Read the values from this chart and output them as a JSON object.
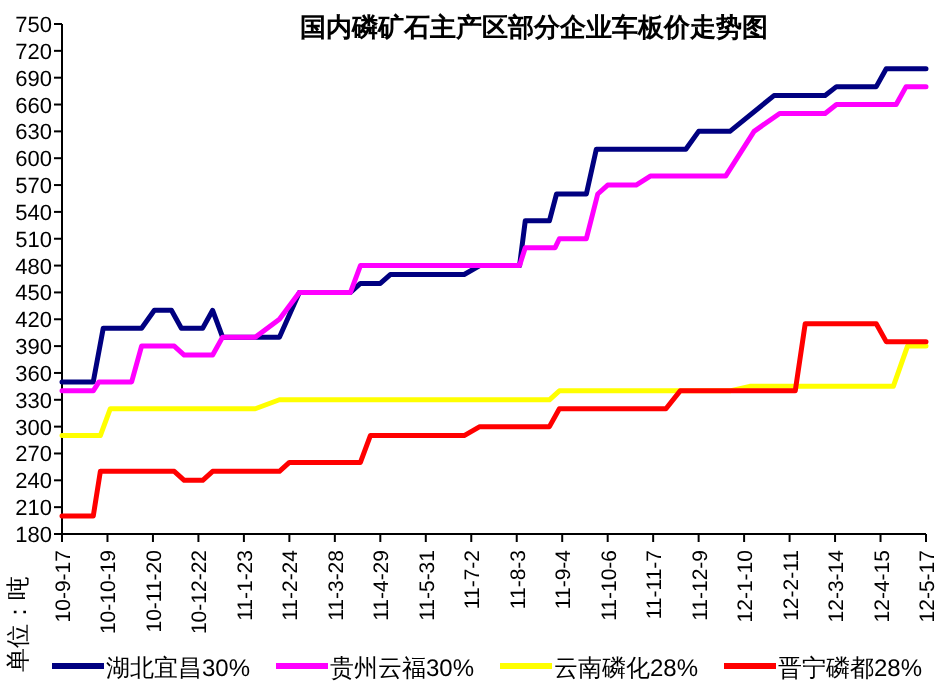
{
  "chart_data": {
    "type": "line",
    "title": "国内磷矿石主产区部分企业车板价走势图",
    "annotations": [
      "单位：吨"
    ],
    "xlim": [
      "2010-09-17",
      "2012-05-17"
    ],
    "xticks": [
      {
        "value": "2010-09-17",
        "label": "10-9-17"
      },
      {
        "value": "2010-10-19",
        "label": "10-10-19"
      },
      {
        "value": "2010-11-20",
        "label": "10-11-20"
      },
      {
        "value": "2010-12-22",
        "label": "10-12-22"
      },
      {
        "value": "2011-01-23",
        "label": "11-1-23"
      },
      {
        "value": "2011-02-24",
        "label": "11-2-24"
      },
      {
        "value": "2011-03-28",
        "label": "11-3-28"
      },
      {
        "value": "2011-04-29",
        "label": "11-4-29"
      },
      {
        "value": "2011-05-31",
        "label": "11-5-31"
      },
      {
        "value": "2011-07-02",
        "label": "11-7-2"
      },
      {
        "value": "2011-08-03",
        "label": "11-8-3"
      },
      {
        "value": "2011-09-04",
        "label": "11-9-4"
      },
      {
        "value": "2011-10-06",
        "label": "11-10-6"
      },
      {
        "value": "2011-11-07",
        "label": "11-11-7"
      },
      {
        "value": "2011-12-09",
        "label": "11-12-9"
      },
      {
        "value": "2012-01-10",
        "label": "12-1-10"
      },
      {
        "value": "2012-02-11",
        "label": "12-2-11"
      },
      {
        "value": "2012-03-14",
        "label": "12-3-14"
      },
      {
        "value": "2012-04-15",
        "label": "12-4-15"
      },
      {
        "value": "2012-05-17",
        "label": "12-5-17"
      }
    ],
    "ylim": [
      180,
      750
    ],
    "yticks": [
      180,
      210,
      240,
      270,
      300,
      330,
      360,
      390,
      420,
      450,
      480,
      510,
      540,
      570,
      600,
      630,
      660,
      690,
      720,
      750
    ],
    "grid": false,
    "legend": "bottom",
    "marker": "none",
    "line_style": "solid",
    "series": [
      {
        "name": "湖北宜昌30%",
        "color": "#000080",
        "x": [
          "2010-09-17",
          "2010-10-09",
          "2010-10-16",
          "2010-11-12",
          "2010-11-21",
          "2010-12-03",
          "2010-12-10",
          "2010-12-25",
          "2011-01-01",
          "2011-01-08",
          "2011-02-17",
          "2011-03-03",
          "2011-04-08",
          "2011-04-15",
          "2011-04-29",
          "2011-05-06",
          "2011-06-27",
          "2011-07-08",
          "2011-08-05",
          "2011-08-09",
          "2011-08-26",
          "2011-08-31",
          "2011-09-21",
          "2011-09-28",
          "2011-11-30",
          "2011-12-09",
          "2011-12-31",
          "2012-01-31",
          "2012-03-07",
          "2012-03-15",
          "2012-04-12",
          "2012-04-19",
          "2012-05-17"
        ],
        "values": [
          350,
          350,
          410,
          410,
          430,
          430,
          410,
          410,
          430,
          400,
          400,
          450,
          450,
          460,
          460,
          470,
          470,
          480,
          480,
          530,
          530,
          560,
          560,
          610,
          610,
          630,
          630,
          670,
          670,
          680,
          680,
          700,
          700
        ]
      },
      {
        "name": "贵州云福30%",
        "color": "#ff00ff",
        "x": [
          "2010-09-17",
          "2010-10-09",
          "2010-10-13",
          "2010-11-05",
          "2010-11-12",
          "2010-12-05",
          "2010-12-12",
          "2011-01-01",
          "2011-01-08",
          "2011-01-31",
          "2011-02-17",
          "2011-03-03",
          "2011-04-08",
          "2011-04-15",
          "2011-08-05",
          "2011-08-09",
          "2011-08-30",
          "2011-09-02",
          "2011-09-21",
          "2011-09-29",
          "2011-10-06",
          "2011-10-26",
          "2011-11-05",
          "2011-12-28",
          "2012-01-17",
          "2012-02-04",
          "2012-03-07",
          "2012-03-15",
          "2012-04-26",
          "2012-05-03",
          "2012-05-17"
        ],
        "values": [
          340,
          340,
          350,
          350,
          390,
          390,
          380,
          380,
          400,
          400,
          420,
          450,
          450,
          480,
          480,
          500,
          500,
          510,
          510,
          560,
          570,
          570,
          580,
          580,
          630,
          650,
          650,
          660,
          660,
          680,
          680
        ]
      },
      {
        "name": "云南磷化28%",
        "color": "#ffff00",
        "x": [
          "2010-09-17",
          "2010-10-14",
          "2010-10-21",
          "2011-01-31",
          "2011-02-17",
          "2011-08-26",
          "2011-09-02",
          "2011-12-31",
          "2012-01-14",
          "2012-04-24",
          "2012-05-04",
          "2012-05-17"
        ],
        "values": [
          290,
          290,
          320,
          320,
          330,
          330,
          340,
          340,
          345,
          345,
          390,
          390
        ]
      },
      {
        "name": "晋宁磷都28%",
        "color": "#ff0000",
        "x": [
          "2010-09-17",
          "2010-10-09",
          "2010-10-14",
          "2010-12-05",
          "2010-12-12",
          "2010-12-25",
          "2011-01-01",
          "2011-02-17",
          "2011-02-24",
          "2011-04-15",
          "2011-04-22",
          "2011-06-27",
          "2011-07-08",
          "2011-08-26",
          "2011-09-02",
          "2011-11-16",
          "2011-11-26",
          "2012-02-15",
          "2012-02-22",
          "2012-04-12",
          "2012-04-19",
          "2012-05-17"
        ],
        "values": [
          200,
          200,
          250,
          250,
          240,
          240,
          250,
          250,
          260,
          260,
          290,
          290,
          300,
          300,
          320,
          320,
          340,
          340,
          415,
          415,
          395,
          395
        ]
      }
    ]
  }
}
